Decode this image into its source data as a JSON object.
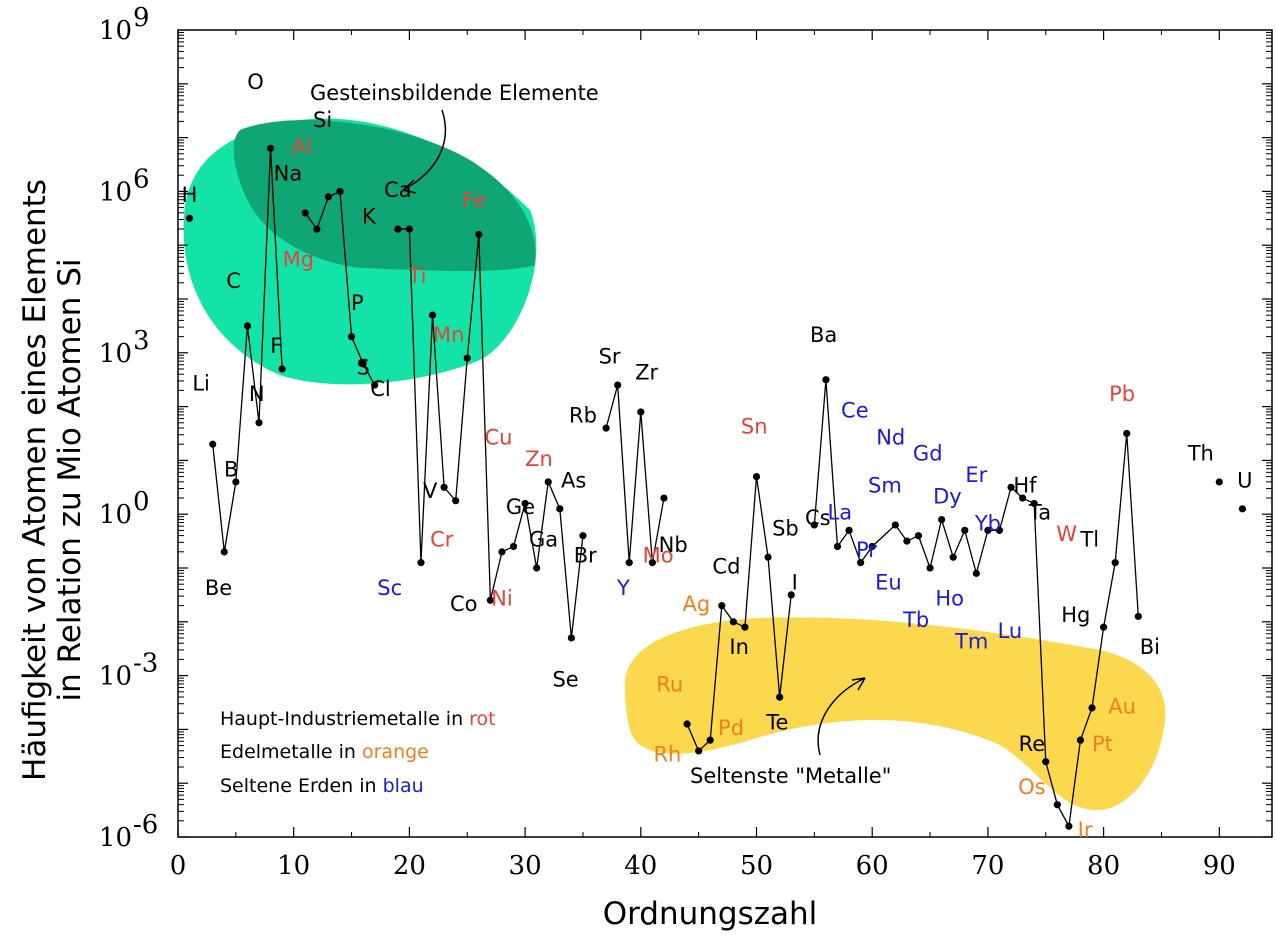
{
  "chart_data": {
    "type": "scatter",
    "xlabel": "Ordnungszahl",
    "ylabel_line1": "Häufigkeit von Atomen eines Elements",
    "ylabel_line2": "in Relation zu Mio Atomen Si",
    "x_range": [
      0,
      94
    ],
    "y_log_range": [
      -6,
      9
    ],
    "x_ticks": [
      "0",
      "10",
      "20",
      "30",
      "40",
      "50",
      "60",
      "70",
      "80",
      "90"
    ],
    "y_ticks": [
      {
        "exp": -6,
        "base": "10",
        "sup": "-6"
      },
      {
        "exp": -3,
        "base": "10",
        "sup": "-3"
      },
      {
        "exp": 0,
        "base": "10",
        "sup": "0"
      },
      {
        "exp": 3,
        "base": "10",
        "sup": "3"
      },
      {
        "exp": 6,
        "base": "10",
        "sup": "6"
      },
      {
        "exp": 9,
        "base": "10",
        "sup": "9"
      }
    ],
    "colors": {
      "black": "#000000",
      "red": "#e8403a",
      "orange": "#f07f1e",
      "blue": "#1a1ae0",
      "rock_light": "#14e3a7",
      "rock_dark": "#10a574",
      "rare": "#fcd84e"
    },
    "annotations": {
      "rock": "Gesteinsbildende Elemente",
      "rare": "Seltenste \"Metalle\""
    },
    "legend": [
      {
        "prefix": "Haupt-Industriemetalle in ",
        "word": "rot",
        "color": "red"
      },
      {
        "prefix": "Edelmetalle in ",
        "word": "orange",
        "color": "orange"
      },
      {
        "prefix": "Seltene Erden in ",
        "word": "blau",
        "color": "blue"
      }
    ],
    "segments": [
      [
        [
          3,
          1.3
        ],
        [
          4,
          -0.7
        ],
        [
          5,
          0.6
        ],
        [
          6,
          3.5
        ],
        [
          7,
          1.7
        ],
        [
          8,
          6.8
        ],
        [
          9,
          2.7
        ]
      ],
      [
        [
          11,
          5.6
        ],
        [
          12,
          5.3
        ],
        [
          13,
          5.9
        ],
        [
          14,
          6.0
        ],
        [
          15,
          3.3
        ],
        [
          16,
          2.8
        ],
        [
          17,
          2.4
        ]
      ],
      [
        [
          19,
          5.3
        ],
        [
          20,
          5.3
        ],
        [
          21,
          -0.9
        ],
        [
          22,
          3.7
        ],
        [
          23,
          0.5
        ],
        [
          24,
          0.25
        ],
        [
          25,
          2.9
        ],
        [
          26,
          5.2
        ],
        [
          27,
          -1.6
        ],
        [
          28,
          -0.7
        ],
        [
          29,
          -0.6
        ],
        [
          30,
          0.2
        ],
        [
          31,
          -1.0
        ],
        [
          32,
          0.6
        ],
        [
          33,
          0.1
        ],
        [
          34,
          -2.3
        ],
        [
          35,
          -0.4
        ]
      ],
      [
        [
          37,
          1.6
        ],
        [
          38,
          2.4
        ],
        [
          39,
          -0.9
        ],
        [
          40,
          1.9
        ],
        [
          41,
          -0.9
        ],
        [
          42,
          0.3
        ]
      ],
      [
        [
          44,
          -3.9
        ],
        [
          45,
          -4.4
        ],
        [
          46,
          -4.2
        ],
        [
          47,
          -1.7
        ],
        [
          48,
          -2.0
        ],
        [
          49,
          -2.1
        ],
        [
          50,
          0.7
        ],
        [
          51,
          -0.8
        ],
        [
          52,
          -3.4
        ],
        [
          53,
          -1.5
        ]
      ],
      [
        [
          55,
          -0.2
        ],
        [
          56,
          2.5
        ],
        [
          57,
          -0.6
        ],
        [
          58,
          -0.3
        ],
        [
          59,
          -0.9
        ],
        [
          60,
          -0.6
        ],
        [
          62,
          -0.2
        ],
        [
          63,
          -0.5
        ],
        [
          64,
          -0.4
        ],
        [
          65,
          -1.0
        ],
        [
          66,
          -0.1
        ],
        [
          67,
          -0.8
        ],
        [
          68,
          -0.3
        ],
        [
          69,
          -1.1
        ],
        [
          70,
          -0.3
        ],
        [
          71,
          -0.3
        ],
        [
          72,
          0.5
        ],
        [
          73,
          0.3
        ],
        [
          74,
          0.2
        ],
        [
          75,
          -4.6
        ],
        [
          76,
          -5.4
        ],
        [
          77,
          -5.8
        ],
        [
          78,
          -4.2
        ],
        [
          79,
          -3.6
        ],
        [
          80,
          -2.1
        ],
        [
          81,
          -0.9
        ],
        [
          82,
          1.5
        ],
        [
          83,
          -1.9
        ]
      ]
    ],
    "points_only": [
      [
        1,
        5.5
      ],
      [
        90,
        0.6
      ],
      [
        92,
        0.1
      ]
    ],
    "labels": [
      {
        "t": "H",
        "x": 1.0,
        "y": 5.8,
        "c": "black"
      },
      {
        "t": "Li",
        "x": 2.0,
        "y": 2.3,
        "c": "black"
      },
      {
        "t": "Be",
        "x": 3.5,
        "y": -1.5,
        "c": "black"
      },
      {
        "t": "B",
        "x": 4.6,
        "y": 0.7,
        "c": "black"
      },
      {
        "t": "C",
        "x": 4.8,
        "y": 4.2,
        "c": "black"
      },
      {
        "t": "N",
        "x": 6.8,
        "y": 2.1,
        "c": "black"
      },
      {
        "t": "O",
        "x": 6.7,
        "y": 7.9,
        "c": "black"
      },
      {
        "t": "F",
        "x": 8.5,
        "y": 3.0,
        "c": "black"
      },
      {
        "t": "Na",
        "x": 9.5,
        "y": 6.2,
        "c": "black"
      },
      {
        "t": "Mg",
        "x": 10.4,
        "y": 4.6,
        "c": "red"
      },
      {
        "t": "Al",
        "x": 10.7,
        "y": 6.7,
        "c": "red"
      },
      {
        "t": "Si",
        "x": 12.5,
        "y": 7.2,
        "c": "black"
      },
      {
        "t": "P",
        "x": 15.5,
        "y": 3.8,
        "c": "black"
      },
      {
        "t": "S",
        "x": 16.0,
        "y": 2.6,
        "c": "black"
      },
      {
        "t": "Cl",
        "x": 17.5,
        "y": 2.2,
        "c": "black"
      },
      {
        "t": "K",
        "x": 16.5,
        "y": 5.4,
        "c": "black"
      },
      {
        "t": "Ca",
        "x": 19.0,
        "y": 5.9,
        "c": "black"
      },
      {
        "t": "Sc",
        "x": 18.3,
        "y": -1.5,
        "c": "blue"
      },
      {
        "t": "Ti",
        "x": 20.7,
        "y": 4.3,
        "c": "red"
      },
      {
        "t": "V",
        "x": 21.8,
        "y": 0.3,
        "c": "black"
      },
      {
        "t": "Cr",
        "x": 22.8,
        "y": -0.6,
        "c": "red"
      },
      {
        "t": "Mn",
        "x": 23.4,
        "y": 3.2,
        "c": "red"
      },
      {
        "t": "Fe",
        "x": 25.6,
        "y": 5.7,
        "c": "red"
      },
      {
        "t": "Co",
        "x": 24.7,
        "y": -1.8,
        "c": "black"
      },
      {
        "t": "Ni",
        "x": 28.0,
        "y": -1.7,
        "c": "red"
      },
      {
        "t": "Cu",
        "x": 27.7,
        "y": 1.3,
        "c": "red"
      },
      {
        "t": "Zn",
        "x": 31.2,
        "y": 0.9,
        "c": "red"
      },
      {
        "t": "Ga",
        "x": 31.6,
        "y": -0.6,
        "c": "black"
      },
      {
        "t": "Ge",
        "x": 29.6,
        "y": 0.0,
        "c": "black"
      },
      {
        "t": "As",
        "x": 34.2,
        "y": 0.5,
        "c": "black"
      },
      {
        "t": "Se",
        "x": 33.5,
        "y": -3.2,
        "c": "black"
      },
      {
        "t": "Br",
        "x": 35.2,
        "y": -0.9,
        "c": "black"
      },
      {
        "t": "Rb",
        "x": 35.0,
        "y": 1.7,
        "c": "black"
      },
      {
        "t": "Sr",
        "x": 37.3,
        "y": 2.8,
        "c": "black"
      },
      {
        "t": "Y",
        "x": 38.5,
        "y": -1.5,
        "c": "blue"
      },
      {
        "t": "Zr",
        "x": 40.5,
        "y": 2.5,
        "c": "black"
      },
      {
        "t": "Nb",
        "x": 42.8,
        "y": -0.7,
        "c": "black"
      },
      {
        "t": "Mo",
        "x": 41.5,
        "y": -0.9,
        "c": "red"
      },
      {
        "t": "Ru",
        "x": 42.5,
        "y": -3.3,
        "c": "orange"
      },
      {
        "t": "Rh",
        "x": 42.3,
        "y": -4.6,
        "c": "orange"
      },
      {
        "t": "Pd",
        "x": 47.8,
        "y": -4.1,
        "c": "orange"
      },
      {
        "t": "Ag",
        "x": 44.8,
        "y": -1.8,
        "c": "orange"
      },
      {
        "t": "Cd",
        "x": 47.4,
        "y": -1.1,
        "c": "black"
      },
      {
        "t": "In",
        "x": 48.5,
        "y": -2.6,
        "c": "black"
      },
      {
        "t": "Sn",
        "x": 49.8,
        "y": 1.5,
        "c": "red"
      },
      {
        "t": "Sb",
        "x": 52.5,
        "y": -0.4,
        "c": "black"
      },
      {
        "t": "I",
        "x": 53.3,
        "y": -1.4,
        "c": "black"
      },
      {
        "t": "Te",
        "x": 51.8,
        "y": -4.0,
        "c": "black"
      },
      {
        "t": "Cs",
        "x": 55.3,
        "y": -0.2,
        "c": "black"
      },
      {
        "t": "Ba",
        "x": 55.8,
        "y": 3.2,
        "c": "black"
      },
      {
        "t": "Ce",
        "x": 58.5,
        "y": 1.8,
        "c": "blue"
      },
      {
        "t": "La",
        "x": 57.2,
        "y": -0.1,
        "c": "blue"
      },
      {
        "t": "Nd",
        "x": 61.6,
        "y": 1.3,
        "c": "blue"
      },
      {
        "t": "Pr",
        "x": 59.5,
        "y": -0.8,
        "c": "blue"
      },
      {
        "t": "Gd",
        "x": 64.8,
        "y": 1.0,
        "c": "blue"
      },
      {
        "t": "Sm",
        "x": 61.1,
        "y": 0.4,
        "c": "blue"
      },
      {
        "t": "Dy",
        "x": 66.5,
        "y": 0.2,
        "c": "blue"
      },
      {
        "t": "Er",
        "x": 69.0,
        "y": 0.6,
        "c": "blue"
      },
      {
        "t": "Hf",
        "x": 73.2,
        "y": 0.4,
        "c": "black"
      },
      {
        "t": "Yb",
        "x": 70.0,
        "y": -0.3,
        "c": "blue"
      },
      {
        "t": "Ta",
        "x": 74.5,
        "y": -0.1,
        "c": "black"
      },
      {
        "t": "W",
        "x": 76.8,
        "y": -0.5,
        "c": "red"
      },
      {
        "t": "Eu",
        "x": 61.4,
        "y": -1.4,
        "c": "blue"
      },
      {
        "t": "Tb",
        "x": 63.8,
        "y": -2.1,
        "c": "blue"
      },
      {
        "t": "Ho",
        "x": 66.7,
        "y": -1.7,
        "c": "blue"
      },
      {
        "t": "Tm",
        "x": 68.6,
        "y": -2.5,
        "c": "blue"
      },
      {
        "t": "Lu",
        "x": 71.9,
        "y": -2.3,
        "c": "blue"
      },
      {
        "t": "Re",
        "x": 73.8,
        "y": -4.4,
        "c": "black"
      },
      {
        "t": "Os",
        "x": 73.8,
        "y": -5.2,
        "c": "orange"
      },
      {
        "t": "Ir",
        "x": 78.4,
        "y": -6.0,
        "c": "orange"
      },
      {
        "t": "Pt",
        "x": 79.9,
        "y": -4.4,
        "c": "orange"
      },
      {
        "t": "Au",
        "x": 81.6,
        "y": -3.7,
        "c": "orange"
      },
      {
        "t": "Hg",
        "x": 77.6,
        "y": -2.0,
        "c": "black"
      },
      {
        "t": "Tl",
        "x": 78.8,
        "y": -0.6,
        "c": "black"
      },
      {
        "t": "Pb",
        "x": 81.6,
        "y": 2.1,
        "c": "red"
      },
      {
        "t": "Bi",
        "x": 84.0,
        "y": -2.6,
        "c": "black"
      },
      {
        "t": "Th",
        "x": 88.4,
        "y": 1.0,
        "c": "black"
      },
      {
        "t": "U",
        "x": 92.2,
        "y": 0.5,
        "c": "black"
      }
    ]
  }
}
